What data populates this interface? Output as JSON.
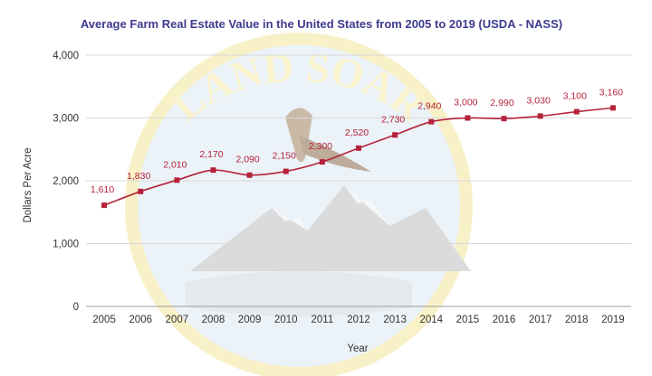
{
  "chart_data": {
    "type": "line",
    "title": "Average Farm Real Estate Value in the United States from 2005 to 2019 (USDA - NASS)",
    "xlabel": "Year",
    "ylabel": "Dollars Per Acre",
    "ylim": [
      0,
      4000
    ],
    "yticks": [
      0,
      1000,
      2000,
      3000,
      4000
    ],
    "ytick_labels": [
      "0",
      "1,000",
      "2,000",
      "3,000",
      "4,000"
    ],
    "grid": true,
    "categories": [
      "2005",
      "2006",
      "2007",
      "2008",
      "2009",
      "2010",
      "2011",
      "2012",
      "2013",
      "2014",
      "2015",
      "2016",
      "2017",
      "2018",
      "2019"
    ],
    "series": [
      {
        "values": [
          1610,
          1830,
          2010,
          2170,
          2090,
          2150,
          2300,
          2520,
          2730,
          2940,
          3000,
          2990,
          3030,
          3100,
          3160
        ],
        "data_labels": [
          "1,610",
          "1,830",
          "2,010",
          "2,170",
          "2,090",
          "2,150",
          "2,300",
          "2,520",
          "2,730",
          "2,940",
          "3,000",
          "2,990",
          "3,030",
          "3,100",
          "3,160"
        ],
        "color": "#b5223a"
      }
    ],
    "colors": {
      "title": "#3d3b8f",
      "line": "#b5223a",
      "grid": "#d9d9d9",
      "label": "#b5223a"
    }
  },
  "watermark": {
    "text": "LAND SOAR",
    "icon": "eagle-mountain-logo"
  }
}
